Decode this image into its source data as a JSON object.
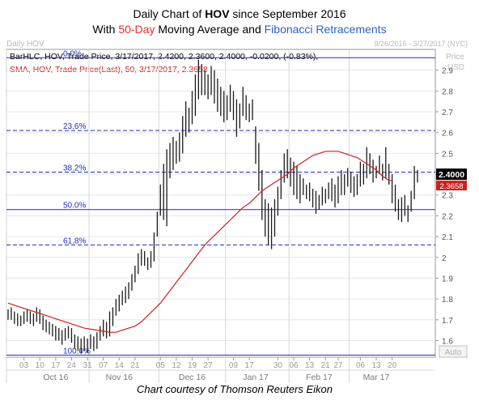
{
  "header": {
    "title_prefix": "Daily Chart of ",
    "title_ticker": "HOV",
    "title_suffix": " since September 2016",
    "subtitle_prefix": "With ",
    "subtitle_ma": "50-Day",
    "subtitle_mid": " Moving Average and ",
    "subtitle_fib": "Fibonacci Retracements"
  },
  "panel": {
    "label": "Daily HOV",
    "date_range": "9/26/2016 - 3/27/2017 (NYC)",
    "price_label": "Price",
    "currency": "USD",
    "auto_label": "Auto"
  },
  "legend": {
    "bar_line": "BarHLC, HOV, Trade Price, 3/17/2017, 2.4200, 2.3600, 2.4000, -0.0200, (-0.83%),",
    "sma_line": "SMA, HOV, Trade Price(Last), 50, 3/17/2017, 2.3658"
  },
  "footer": {
    "credit": "Chart courtesy of Thomson Reuters Eikon"
  },
  "colors": {
    "ma_accent": "#e8312a",
    "fib_accent": "#2a62c9",
    "bars": "#1a1a1a",
    "sma_line": "#cc2020",
    "fib_lines": "#1d2fb0",
    "last_price_bg": "#000000",
    "sma_value_bg": "#cc2020"
  },
  "chart_data": {
    "type": "ohlc-bar",
    "ticker": "HOV",
    "ylim": [
      1.52,
      3.0
    ],
    "y_ticks": [
      1.6,
      1.7,
      1.8,
      1.9,
      2,
      2.1,
      2.2,
      2.3,
      2.4,
      2.5,
      2.6,
      2.7,
      2.8,
      2.9
    ],
    "y_tick_labels": [
      "1.6",
      "1.7",
      "1.8",
      "1.9",
      "2",
      "2.1",
      "2.2",
      "2.3",
      "2.4",
      "2.5",
      "2.6",
      "2.7",
      "2.8",
      "2.9"
    ],
    "x_day_ticks": [
      {
        "label": "03",
        "index": 5
      },
      {
        "label": "10",
        "index": 10
      },
      {
        "label": "17",
        "index": 15
      },
      {
        "label": "24",
        "index": 20
      },
      {
        "label": "31",
        "index": 25
      },
      {
        "label": "07",
        "index": 30
      },
      {
        "label": "14",
        "index": 35
      },
      {
        "label": "21",
        "index": 40
      },
      {
        "label": "05",
        "index": 48
      },
      {
        "label": "12",
        "index": 53
      },
      {
        "label": "19",
        "index": 58
      },
      {
        "label": "27",
        "index": 63
      },
      {
        "label": "09",
        "index": 71
      },
      {
        "label": "17",
        "index": 76
      },
      {
        "label": "30",
        "index": 85
      },
      {
        "label": "06",
        "index": 90
      },
      {
        "label": "13",
        "index": 95
      },
      {
        "label": "21",
        "index": 100
      },
      {
        "label": "27",
        "index": 104
      },
      {
        "label": "06",
        "index": 111
      },
      {
        "label": "13",
        "index": 116
      },
      {
        "label": "20",
        "index": 121
      }
    ],
    "x_month_labels": [
      {
        "label": "Oct 16",
        "index": 15
      },
      {
        "label": "Nov 16",
        "index": 35
      },
      {
        "label": "Dec 16",
        "index": 58
      },
      {
        "label": "Jan 17",
        "index": 78
      },
      {
        "label": "Feb 17",
        "index": 98
      },
      {
        "label": "Mar 17",
        "index": 116
      }
    ],
    "month_dividers": [
      0,
      26,
      48,
      69,
      89,
      108
    ],
    "fib_levels": [
      {
        "label": "0.0%",
        "value": 2.96,
        "style": "solid"
      },
      {
        "label": "23.6%",
        "value": 2.61,
        "style": "dashed"
      },
      {
        "label": "38.2%",
        "value": 2.41,
        "style": "dashed"
      },
      {
        "label": "50.0%",
        "value": 2.23,
        "style": "solid"
      },
      {
        "label": "61.8%",
        "value": 2.06,
        "style": "dashed"
      },
      {
        "label": "100.0%",
        "value": 1.53,
        "style": "solid"
      }
    ],
    "ohlc": [
      [
        1.75,
        1.7
      ],
      [
        1.76,
        1.7
      ],
      [
        1.74,
        1.68
      ],
      [
        1.73,
        1.67
      ],
      [
        1.72,
        1.67
      ],
      [
        1.74,
        1.68
      ],
      [
        1.75,
        1.69
      ],
      [
        1.74,
        1.68
      ],
      [
        1.73,
        1.67
      ],
      [
        1.76,
        1.69
      ],
      [
        1.75,
        1.68
      ],
      [
        1.72,
        1.65
      ],
      [
        1.7,
        1.64
      ],
      [
        1.69,
        1.63
      ],
      [
        1.68,
        1.62
      ],
      [
        1.67,
        1.6
      ],
      [
        1.66,
        1.6
      ],
      [
        1.65,
        1.58
      ],
      [
        1.66,
        1.6
      ],
      [
        1.67,
        1.61
      ],
      [
        1.66,
        1.59
      ],
      [
        1.63,
        1.56
      ],
      [
        1.62,
        1.55
      ],
      [
        1.61,
        1.54
      ],
      [
        1.62,
        1.55
      ],
      [
        1.61,
        1.54
      ],
      [
        1.63,
        1.56
      ],
      [
        1.62,
        1.55
      ],
      [
        1.64,
        1.56
      ],
      [
        1.67,
        1.6
      ],
      [
        1.7,
        1.62
      ],
      [
        1.69,
        1.61
      ],
      [
        1.74,
        1.62
      ],
      [
        1.76,
        1.67
      ],
      [
        1.8,
        1.72
      ],
      [
        1.82,
        1.74
      ],
      [
        1.84,
        1.77
      ],
      [
        1.86,
        1.78
      ],
      [
        1.88,
        1.8
      ],
      [
        1.92,
        1.84
      ],
      [
        1.96,
        1.88
      ],
      [
        2.02,
        1.92
      ],
      [
        2.04,
        1.96
      ],
      [
        2.03,
        1.96
      ],
      [
        2.0,
        1.94
      ],
      [
        2.03,
        1.95
      ],
      [
        2.12,
        1.98
      ],
      [
        2.22,
        2.1
      ],
      [
        2.35,
        2.2
      ],
      [
        2.45,
        2.18
      ],
      [
        2.52,
        2.15
      ],
      [
        2.55,
        2.38
      ],
      [
        2.58,
        2.42
      ],
      [
        2.56,
        2.45
      ],
      [
        2.6,
        2.46
      ],
      [
        2.68,
        2.5
      ],
      [
        2.75,
        2.58
      ],
      [
        2.72,
        2.6
      ],
      [
        2.8,
        2.64
      ],
      [
        2.88,
        2.68
      ],
      [
        2.95,
        2.76
      ],
      [
        2.93,
        2.78
      ],
      [
        2.9,
        2.78
      ],
      [
        2.88,
        2.76
      ],
      [
        2.92,
        2.78
      ],
      [
        2.9,
        2.74
      ],
      [
        2.86,
        2.7
      ],
      [
        2.82,
        2.68
      ],
      [
        2.8,
        2.65
      ],
      [
        2.78,
        2.66
      ],
      [
        2.83,
        2.7
      ],
      [
        2.8,
        2.66
      ],
      [
        2.76,
        2.58
      ],
      [
        2.74,
        2.62
      ],
      [
        2.82,
        2.68
      ],
      [
        2.78,
        2.66
      ],
      [
        2.74,
        2.65
      ],
      [
        2.76,
        2.66
      ],
      [
        2.63,
        2.45
      ],
      [
        2.55,
        2.32
      ],
      [
        2.42,
        2.18
      ],
      [
        2.28,
        2.1
      ],
      [
        2.26,
        2.06
      ],
      [
        2.24,
        2.04
      ],
      [
        2.28,
        2.1
      ],
      [
        2.34,
        2.2
      ],
      [
        2.42,
        2.28
      ],
      [
        2.5,
        2.36
      ],
      [
        2.52,
        2.38
      ],
      [
        2.48,
        2.34
      ],
      [
        2.46,
        2.3
      ],
      [
        2.44,
        2.28
      ],
      [
        2.4,
        2.26
      ],
      [
        2.38,
        2.3
      ],
      [
        2.35,
        2.28
      ],
      [
        2.36,
        2.27
      ],
      [
        2.33,
        2.24
      ],
      [
        2.32,
        2.21
      ],
      [
        2.3,
        2.23
      ],
      [
        2.34,
        2.25
      ],
      [
        2.33,
        2.26
      ],
      [
        2.36,
        2.28
      ],
      [
        2.38,
        2.27
      ],
      [
        2.35,
        2.24
      ],
      [
        2.39,
        2.26
      ],
      [
        2.42,
        2.3
      ],
      [
        2.4,
        2.3
      ],
      [
        2.43,
        2.34
      ],
      [
        2.41,
        2.31
      ],
      [
        2.39,
        2.29
      ],
      [
        2.4,
        2.3
      ],
      [
        2.46,
        2.34
      ],
      [
        2.45,
        2.35
      ],
      [
        2.53,
        2.38
      ],
      [
        2.5,
        2.4
      ],
      [
        2.47,
        2.36
      ],
      [
        2.44,
        2.38
      ],
      [
        2.49,
        2.4
      ],
      [
        2.45,
        2.37
      ],
      [
        2.53,
        2.38
      ],
      [
        2.45,
        2.35
      ],
      [
        2.4,
        2.26
      ],
      [
        2.35,
        2.22
      ],
      [
        2.28,
        2.18
      ],
      [
        2.29,
        2.17
      ],
      [
        2.3,
        2.2
      ],
      [
        2.25,
        2.17
      ],
      [
        2.32,
        2.22
      ],
      [
        2.44,
        2.28
      ],
      [
        2.42,
        2.36
      ]
    ],
    "sma_50": [
      [
        0,
        1.78
      ],
      [
        4,
        1.76
      ],
      [
        8,
        1.74
      ],
      [
        12,
        1.72
      ],
      [
        16,
        1.7
      ],
      [
        20,
        1.68
      ],
      [
        24,
        1.66
      ],
      [
        28,
        1.65
      ],
      [
        32,
        1.64
      ],
      [
        34,
        1.64
      ],
      [
        36,
        1.65
      ],
      [
        38,
        1.66
      ],
      [
        40,
        1.67
      ],
      [
        42,
        1.69
      ],
      [
        44,
        1.72
      ],
      [
        46,
        1.75
      ],
      [
        48,
        1.78
      ],
      [
        50,
        1.82
      ],
      [
        52,
        1.86
      ],
      [
        54,
        1.9
      ],
      [
        56,
        1.94
      ],
      [
        58,
        1.98
      ],
      [
        60,
        2.02
      ],
      [
        62,
        2.06
      ],
      [
        64,
        2.09
      ],
      [
        66,
        2.12
      ],
      [
        68,
        2.15
      ],
      [
        70,
        2.18
      ],
      [
        72,
        2.21
      ],
      [
        74,
        2.24
      ],
      [
        76,
        2.26
      ],
      [
        78,
        2.29
      ],
      [
        80,
        2.32
      ],
      [
        82,
        2.34
      ],
      [
        84,
        2.36
      ],
      [
        86,
        2.38
      ],
      [
        88,
        2.4
      ],
      [
        90,
        2.43
      ],
      [
        92,
        2.45
      ],
      [
        94,
        2.47
      ],
      [
        96,
        2.49
      ],
      [
        98,
        2.5
      ],
      [
        100,
        2.51
      ],
      [
        102,
        2.51
      ],
      [
        104,
        2.51
      ],
      [
        106,
        2.5
      ],
      [
        108,
        2.49
      ],
      [
        110,
        2.48
      ],
      [
        112,
        2.46
      ],
      [
        114,
        2.44
      ],
      [
        116,
        2.42
      ],
      [
        118,
        2.39
      ],
      [
        120,
        2.37
      ],
      [
        121,
        2.37
      ]
    ],
    "last_price": {
      "label": "2.4000",
      "value": 2.4
    },
    "sma_value": {
      "label": "2.3658",
      "value": 2.3658
    }
  }
}
